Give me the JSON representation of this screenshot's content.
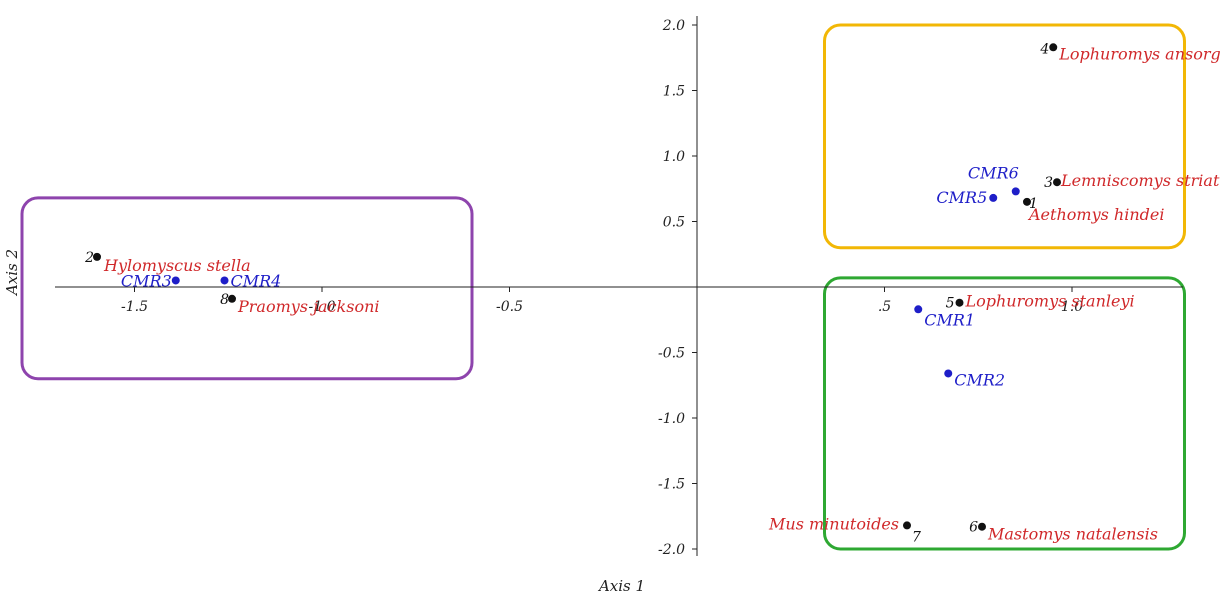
{
  "chart_data": {
    "type": "scatter",
    "xlabel": "Axis 1",
    "ylabel": "Axis 2",
    "xlim": [
      -1.85,
      1.3
    ],
    "ylim": [
      -2.0,
      2.0
    ],
    "x_ticks": [
      -1.5,
      -1.0,
      -0.5,
      0.5,
      1.0
    ],
    "x_tick_labels": [
      "-1.5",
      "-1.0",
      "-0.5",
      ".5",
      "1.0"
    ],
    "y_ticks": [
      2.0,
      1.5,
      1.0,
      0.5,
      -0.5,
      -1.0,
      -1.5,
      -2.0
    ],
    "y_tick_labels": [
      "2.0",
      "1.5",
      "1.0",
      "0.5",
      "-0.5",
      "-1.0",
      "-1.5",
      "-2.0"
    ],
    "colors": {
      "species_point": "#111111",
      "species_label": "#d0282a",
      "site": "#1e1ec8",
      "group_left": "#8e44ad",
      "group_top_right": "#f2b705",
      "group_bottom_right": "#2ea832"
    },
    "species": [
      {
        "id": "1",
        "name": "Aethomys hindei",
        "x": 0.88,
        "y": 0.65
      },
      {
        "id": "2",
        "name": "Hylomyscus stella",
        "x": -1.6,
        "y": 0.23
      },
      {
        "id": "3",
        "name": "Lemniscomys striatus",
        "x": 0.96,
        "y": 0.8
      },
      {
        "id": "4",
        "name": "Lophuromys ansorgei",
        "x": 0.95,
        "y": 1.83
      },
      {
        "id": "5",
        "name": "Lophuromys stanleyi",
        "x": 0.7,
        "y": -0.12
      },
      {
        "id": "6",
        "name": "Mastomys natalensis",
        "x": 0.76,
        "y": -1.83
      },
      {
        "id": "7",
        "name": "Mus minutoides",
        "x": 0.56,
        "y": -1.82
      },
      {
        "id": "8",
        "name": "Praomys jacksoni",
        "x": -1.24,
        "y": -0.09
      }
    ],
    "sites": [
      {
        "name": "CMR1",
        "x": 0.59,
        "y": -0.17
      },
      {
        "name": "CMR2",
        "x": 0.67,
        "y": -0.66
      },
      {
        "name": "CMR3",
        "x": -1.39,
        "y": 0.05
      },
      {
        "name": "CMR4",
        "x": -1.26,
        "y": 0.05
      },
      {
        "name": "CMR5",
        "x": 0.79,
        "y": 0.68
      },
      {
        "name": "CMR6",
        "x": 0.85,
        "y": 0.73
      }
    ],
    "groups": [
      {
        "color_key": "group_left",
        "x_range": [
          -1.8,
          -0.6
        ],
        "y_range": [
          -0.7,
          0.68
        ]
      },
      {
        "color_key": "group_top_right",
        "x_range": [
          0.34,
          1.3
        ],
        "y_range": [
          0.3,
          2.0
        ]
      },
      {
        "color_key": "group_bottom_right",
        "x_range": [
          0.34,
          1.3
        ],
        "y_range": [
          -2.0,
          0.07
        ]
      }
    ]
  }
}
